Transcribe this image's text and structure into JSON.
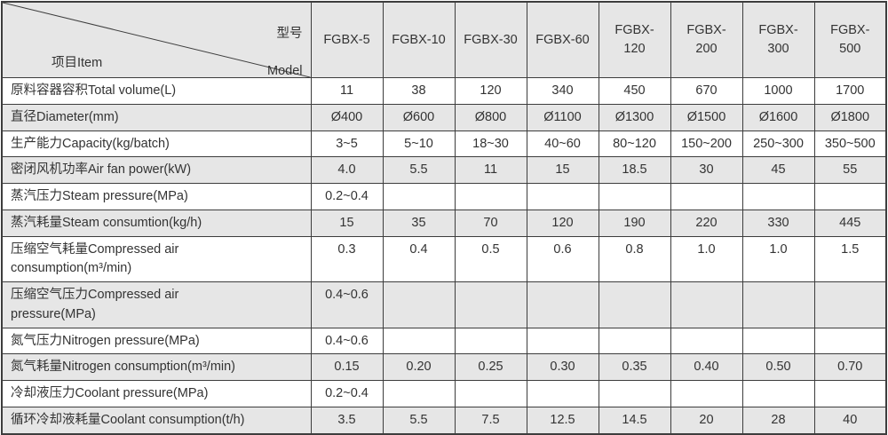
{
  "table": {
    "corner": {
      "model_zh": "型号",
      "model_en": "Model",
      "item_label": "项目Item"
    },
    "columns": [
      "FGBX-5",
      "FGBX-10",
      "FGBX-30",
      "FGBX-60",
      "FGBX-\n120",
      "FGBX-\n200",
      "FGBX-\n300",
      "FGBX-\n500"
    ],
    "rows": [
      {
        "label": "原料容器容积Total volume(L)",
        "values": [
          "11",
          "38",
          "120",
          "340",
          "450",
          "670",
          "1000",
          "1700"
        ]
      },
      {
        "label": "直径Diameter(mm)",
        "values": [
          "Ø400",
          "Ø600",
          "Ø800",
          "Ø1100",
          "Ø1300",
          "Ø1500",
          "Ø1600",
          "Ø1800"
        ]
      },
      {
        "label": "生产能力Capacity(kg/batch)",
        "values": [
          "3~5",
          "5~10",
          "18~30",
          "40~60",
          "80~120",
          "150~200",
          "250~300",
          "350~500"
        ]
      },
      {
        "label": "密闭风机功率Air fan power(kW)",
        "values": [
          "4.0",
          "5.5",
          "11",
          "15",
          "18.5",
          "30",
          "45",
          "55"
        ]
      },
      {
        "label": "蒸汽压力Steam pressure(MPa)",
        "values": [
          "0.2~0.4",
          "",
          "",
          "",
          "",
          "",
          "",
          ""
        ]
      },
      {
        "label": "蒸汽耗量Steam consumtion(kg/h)",
        "values": [
          "15",
          "35",
          "70",
          "120",
          "190",
          "220",
          "330",
          "445"
        ]
      },
      {
        "label": "压缩空气耗量Compressed air\nconsumption(m³/min)",
        "values": [
          "0.3",
          "0.4",
          "0.5",
          "0.6",
          "0.8",
          "1.0",
          "1.0",
          "1.5"
        ]
      },
      {
        "label": "压缩空气压力Compressed air\npressure(MPa)",
        "values": [
          "0.4~0.6",
          "",
          "",
          "",
          "",
          "",
          "",
          ""
        ]
      },
      {
        "label": "氮气压力Nitrogen pressure(MPa)",
        "values": [
          "0.4~0.6",
          "",
          "",
          "",
          "",
          "",
          "",
          ""
        ]
      },
      {
        "label": "氮气耗量Nitrogen consumption(m³/min)",
        "values": [
          "0.15",
          "0.20",
          "0.25",
          "0.30",
          "0.35",
          "0.40",
          "0.50",
          "0.70"
        ]
      },
      {
        "label": "冷却液压力Coolant pressure(MPa)",
        "values": [
          "0.2~0.4",
          "",
          "",
          "",
          "",
          "",
          "",
          ""
        ]
      },
      {
        "label": "循环冷却液耗量Coolant consumption(t/h)",
        "values": [
          "3.5",
          "5.5",
          "7.5",
          "12.5",
          "14.5",
          "20",
          "28",
          "40"
        ]
      }
    ],
    "colors": {
      "row_alt_bg": "#e6e6e6",
      "border": "#3d3d3d",
      "text": "#333333"
    }
  }
}
